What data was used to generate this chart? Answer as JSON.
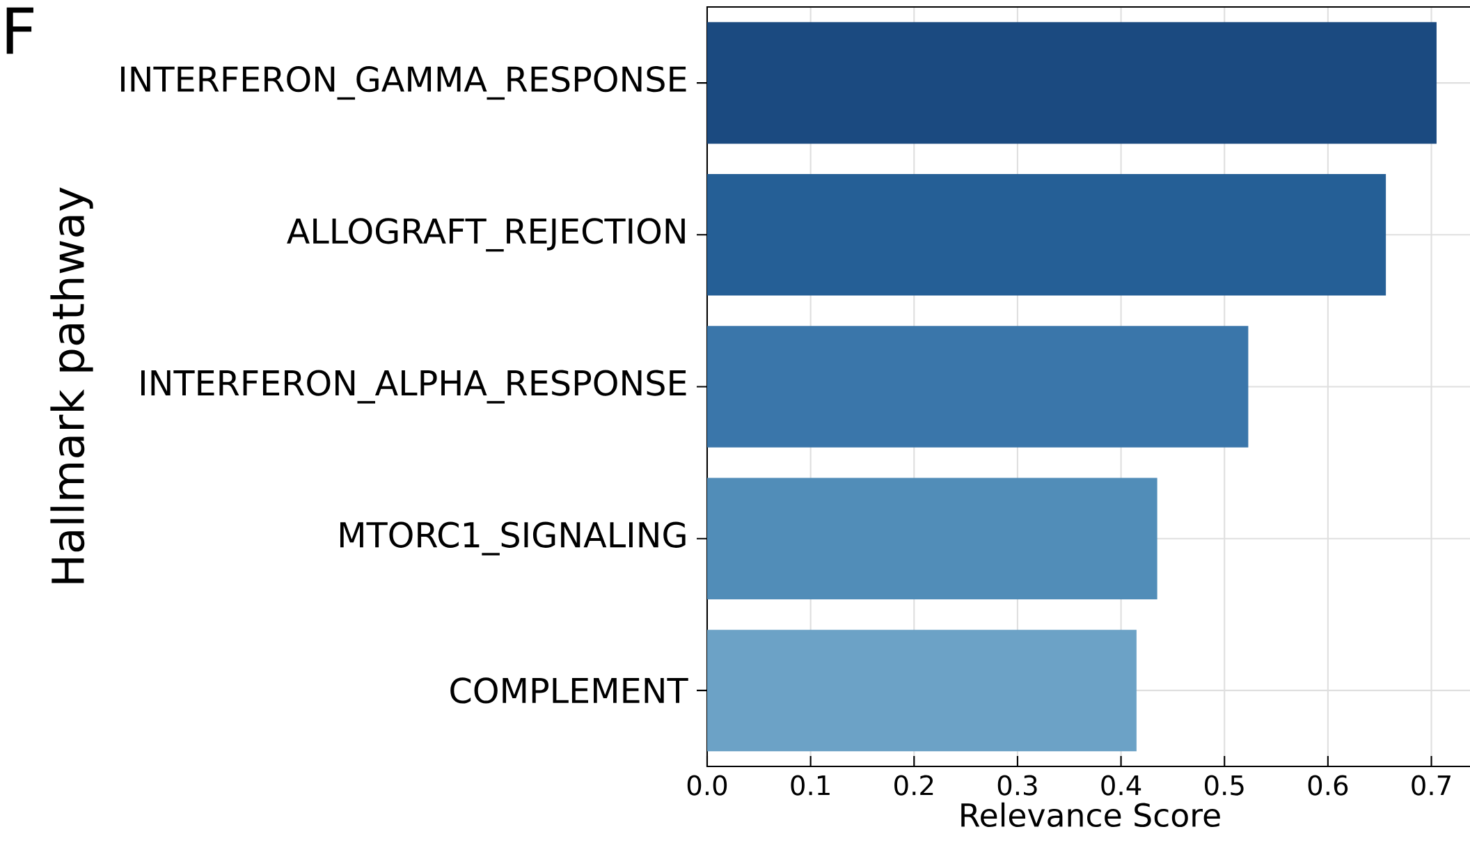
{
  "chart_data": {
    "type": "bar",
    "orientation": "horizontal",
    "xlabel": "Relevance Score",
    "ylabel": "Hallmark pathway",
    "categories": [
      "INTERFERON_GAMMA_RESPONSE",
      "ALLOGRAFT_REJECTION",
      "INTERFERON_ALPHA_RESPONSE",
      "MTORC1_SIGNALING",
      "COMPLEMENT"
    ],
    "values": [
      0.705,
      0.656,
      0.523,
      0.435,
      0.415
    ],
    "colors": [
      "#1b4a80",
      "#255f96",
      "#3a76aa",
      "#518db8",
      "#6ca2c6"
    ],
    "xlim": [
      0,
      0.74
    ],
    "xticks": [
      {
        "value": 0,
        "label": "0.0"
      },
      0.1,
      0.2,
      0.3,
      0.4,
      0.5,
      0.6,
      0.7
    ],
    "grid": true,
    "annotations": [
      "F"
    ]
  }
}
